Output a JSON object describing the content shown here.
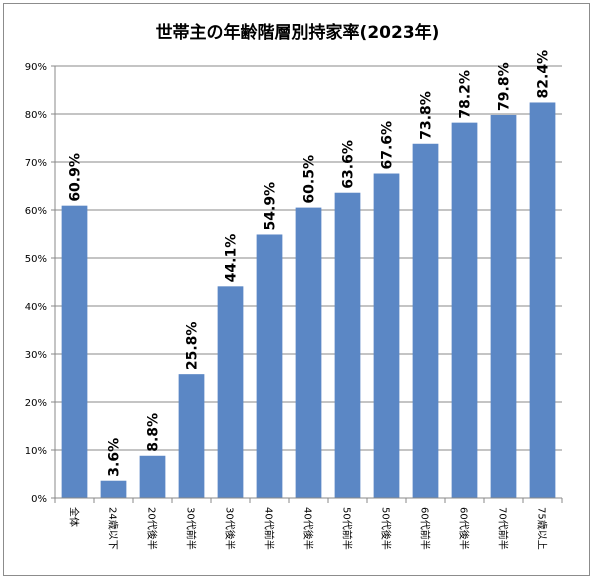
{
  "chart_data": {
    "type": "bar",
    "title": "世帯主の年齢階層別持家率(2023年)",
    "xlabel": "",
    "ylabel": "",
    "categories": [
      "全体",
      "24歳以下",
      "20代後半",
      "30代前半",
      "30代後半",
      "40代前半",
      "40代後半",
      "50代前半",
      "50代後半",
      "60代前半",
      "60代後半",
      "70代前半",
      "75歳以上"
    ],
    "values": [
      60.9,
      3.6,
      8.8,
      25.8,
      44.1,
      54.9,
      60.5,
      63.6,
      67.6,
      73.8,
      78.2,
      79.8,
      82.4
    ],
    "value_labels": [
      "60.9%",
      "3.6%",
      "8.8%",
      "25.8%",
      "44.1%",
      "54.9%",
      "60.5%",
      "63.6%",
      "67.6%",
      "73.8%",
      "78.2%",
      "79.8%",
      "82.4%"
    ],
    "ylim": [
      0,
      90
    ],
    "yticks": [
      "0%",
      "10%",
      "20%",
      "30%",
      "40%",
      "50%",
      "60%",
      "70%",
      "80%",
      "90%"
    ],
    "grid": true,
    "legend": "none",
    "bar_color": "#5b87c5"
  }
}
